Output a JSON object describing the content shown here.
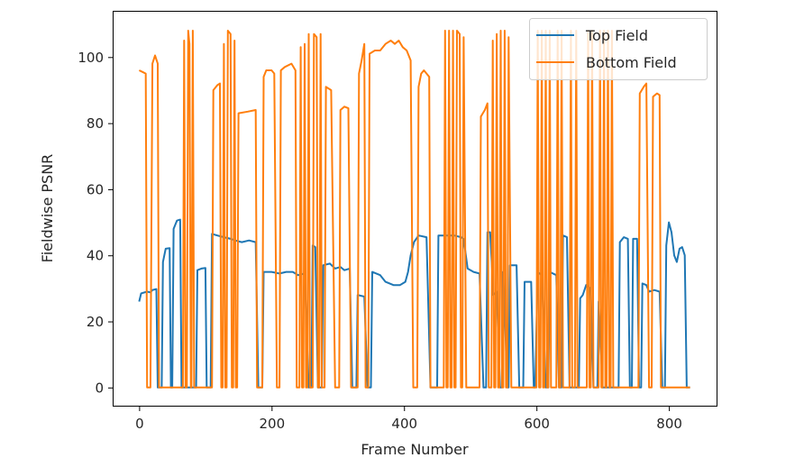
{
  "chart_data": {
    "type": "line",
    "xlabel": "Frame Number",
    "ylabel": "Fieldwise PSNR",
    "xlim": [
      -40,
      872
    ],
    "ylim": [
      -5.5,
      114
    ],
    "x_ticks": [
      0,
      200,
      400,
      600,
      800
    ],
    "y_ticks": [
      0,
      20,
      40,
      60,
      80,
      100
    ],
    "grid": false,
    "legend_position": "top-right",
    "series": [
      {
        "name": "Top Field",
        "color": "#1f77b4",
        "points": [
          [
            0,
            26
          ],
          [
            3,
            28.5
          ],
          [
            12,
            29
          ],
          [
            17,
            28.8
          ],
          [
            20,
            29.5
          ],
          [
            26,
            29.8
          ],
          [
            28,
            0
          ],
          [
            34,
            0
          ],
          [
            36,
            38
          ],
          [
            40,
            42
          ],
          [
            46,
            42.2
          ],
          [
            48,
            0
          ],
          [
            50,
            0
          ],
          [
            52,
            48
          ],
          [
            57,
            50.5
          ],
          [
            62,
            50.8
          ],
          [
            64,
            0
          ],
          [
            86,
            0
          ],
          [
            88,
            35.5
          ],
          [
            94,
            36
          ],
          [
            100,
            36.2
          ],
          [
            102,
            0
          ],
          [
            108,
            0
          ],
          [
            110,
            46.5
          ],
          [
            118,
            46
          ],
          [
            128,
            45.5
          ],
          [
            138,
            45
          ],
          [
            145,
            44.5
          ],
          [
            155,
            44
          ],
          [
            166,
            44.5
          ],
          [
            176,
            44
          ],
          [
            180,
            0
          ],
          [
            186,
            0
          ],
          [
            188,
            35
          ],
          [
            200,
            35
          ],
          [
            212,
            34.5
          ],
          [
            222,
            35
          ],
          [
            232,
            35
          ],
          [
            240,
            34
          ],
          [
            250,
            34.5
          ],
          [
            256,
            0
          ],
          [
            260,
            0
          ],
          [
            262,
            43
          ],
          [
            266,
            42.5
          ],
          [
            270,
            0
          ],
          [
            276,
            0
          ],
          [
            278,
            37
          ],
          [
            288,
            37.5
          ],
          [
            296,
            36
          ],
          [
            304,
            36.5
          ],
          [
            310,
            35.5
          ],
          [
            318,
            36
          ],
          [
            322,
            0
          ],
          [
            328,
            0
          ],
          [
            330,
            28
          ],
          [
            340,
            27.5
          ],
          [
            345,
            0
          ],
          [
            350,
            0
          ],
          [
            352,
            35
          ],
          [
            364,
            34
          ],
          [
            372,
            32
          ],
          [
            384,
            31
          ],
          [
            394,
            31
          ],
          [
            402,
            32
          ],
          [
            406,
            35
          ],
          [
            410,
            40
          ],
          [
            415,
            44
          ],
          [
            422,
            46
          ],
          [
            434,
            45.5
          ],
          [
            440,
            0
          ],
          [
            450,
            0
          ],
          [
            452,
            46
          ],
          [
            464,
            46
          ],
          [
            476,
            46
          ],
          [
            486,
            45.5
          ],
          [
            490,
            45
          ],
          [
            496,
            36
          ],
          [
            505,
            35
          ],
          [
            514,
            34.5
          ],
          [
            520,
            0
          ],
          [
            524,
            0
          ],
          [
            526,
            47
          ],
          [
            530,
            47
          ],
          [
            535,
            28
          ],
          [
            540,
            29
          ],
          [
            545,
            0
          ],
          [
            548,
            0
          ],
          [
            550,
            35
          ],
          [
            556,
            0
          ],
          [
            558,
            0
          ],
          [
            560,
            37
          ],
          [
            570,
            37
          ],
          [
            574,
            0
          ],
          [
            580,
            0
          ],
          [
            582,
            32
          ],
          [
            592,
            32
          ],
          [
            596,
            0
          ],
          [
            598,
            0
          ],
          [
            602,
            35
          ],
          [
            608,
            34
          ],
          [
            614,
            0
          ],
          [
            618,
            0
          ],
          [
            620,
            35
          ],
          [
            630,
            34
          ],
          [
            634,
            0
          ],
          [
            638,
            0
          ],
          [
            640,
            46
          ],
          [
            646,
            45.5
          ],
          [
            650,
            0
          ],
          [
            664,
            0
          ],
          [
            666,
            27
          ],
          [
            670,
            28
          ],
          [
            675,
            31
          ],
          [
            682,
            30
          ],
          [
            686,
            0
          ],
          [
            692,
            0
          ],
          [
            694,
            26
          ],
          [
            700,
            0
          ],
          [
            724,
            0
          ],
          [
            726,
            44
          ],
          [
            732,
            45.5
          ],
          [
            738,
            45
          ],
          [
            741,
            0
          ],
          [
            744,
            0
          ],
          [
            746,
            45
          ],
          [
            752,
            45
          ],
          [
            755,
            0
          ],
          [
            758,
            0
          ],
          [
            760,
            31.5
          ],
          [
            766,
            31
          ],
          [
            770,
            29
          ],
          [
            778,
            29.5
          ],
          [
            786,
            29
          ],
          [
            790,
            0
          ],
          [
            794,
            0
          ],
          [
            796,
            43
          ],
          [
            800,
            50
          ],
          [
            804,
            47
          ],
          [
            808,
            40
          ],
          [
            812,
            38
          ],
          [
            816,
            42
          ],
          [
            820,
            42.5
          ],
          [
            824,
            40
          ],
          [
            827,
            0
          ],
          [
            832,
            0
          ]
        ]
      },
      {
        "name": "Bottom Field",
        "color": "#ff7f0e",
        "points": [
          [
            0,
            96
          ],
          [
            5,
            95.5
          ],
          [
            10,
            95
          ],
          [
            12,
            0
          ],
          [
            17,
            0
          ],
          [
            20,
            98
          ],
          [
            24,
            100.5
          ],
          [
            28,
            98
          ],
          [
            30,
            0
          ],
          [
            66,
            0
          ],
          [
            68,
            105
          ],
          [
            70,
            0
          ],
          [
            72,
            0
          ],
          [
            74,
            108
          ],
          [
            76,
            104
          ],
          [
            78,
            0
          ],
          [
            79,
            0
          ],
          [
            81,
            108
          ],
          [
            83,
            0
          ],
          [
            110,
            0
          ],
          [
            112,
            90
          ],
          [
            118,
            91.5
          ],
          [
            122,
            92
          ],
          [
            124,
            0
          ],
          [
            126,
            0
          ],
          [
            128,
            104
          ],
          [
            130,
            0
          ],
          [
            132,
            0
          ],
          [
            134,
            108
          ],
          [
            138,
            107
          ],
          [
            140,
            0
          ],
          [
            142,
            0
          ],
          [
            144,
            105
          ],
          [
            146,
            0
          ],
          [
            148,
            0
          ],
          [
            150,
            83
          ],
          [
            164,
            83.5
          ],
          [
            176,
            84
          ],
          [
            178,
            0
          ],
          [
            186,
            0
          ],
          [
            188,
            94
          ],
          [
            192,
            96
          ],
          [
            200,
            96
          ],
          [
            204,
            95
          ],
          [
            208,
            0
          ],
          [
            212,
            0
          ],
          [
            214,
            96
          ],
          [
            220,
            97
          ],
          [
            230,
            98
          ],
          [
            236,
            96
          ],
          [
            238,
            0
          ],
          [
            242,
            0
          ],
          [
            244,
            103
          ],
          [
            246,
            0
          ],
          [
            248,
            0
          ],
          [
            250,
            104
          ],
          [
            252,
            0
          ],
          [
            254,
            0
          ],
          [
            256,
            107
          ],
          [
            258,
            0
          ],
          [
            262,
            0
          ],
          [
            264,
            107
          ],
          [
            268,
            106
          ],
          [
            270,
            0
          ],
          [
            272,
            0
          ],
          [
            274,
            107
          ],
          [
            276,
            0
          ],
          [
            280,
            0
          ],
          [
            282,
            91
          ],
          [
            290,
            90
          ],
          [
            296,
            0
          ],
          [
            302,
            0
          ],
          [
            304,
            84
          ],
          [
            310,
            85
          ],
          [
            316,
            84.5
          ],
          [
            320,
            0
          ],
          [
            330,
            0
          ],
          [
            332,
            95
          ],
          [
            336,
            99
          ],
          [
            340,
            104
          ],
          [
            342,
            0
          ],
          [
            346,
            0
          ],
          [
            348,
            101
          ],
          [
            356,
            102
          ],
          [
            364,
            102
          ],
          [
            372,
            104
          ],
          [
            380,
            105
          ],
          [
            386,
            104
          ],
          [
            392,
            105
          ],
          [
            398,
            103
          ],
          [
            404,
            102
          ],
          [
            410,
            99
          ],
          [
            414,
            0
          ],
          [
            420,
            0
          ],
          [
            422,
            91
          ],
          [
            426,
            95
          ],
          [
            430,
            96
          ],
          [
            438,
            94
          ],
          [
            440,
            0
          ],
          [
            460,
            0
          ],
          [
            462,
            108
          ],
          [
            464,
            0
          ],
          [
            466,
            0
          ],
          [
            468,
            108
          ],
          [
            470,
            0
          ],
          [
            472,
            0
          ],
          [
            474,
            108
          ],
          [
            476,
            0
          ],
          [
            478,
            0
          ],
          [
            480,
            108
          ],
          [
            484,
            107
          ],
          [
            486,
            0
          ],
          [
            488,
            0
          ],
          [
            490,
            106
          ],
          [
            494,
            0
          ],
          [
            514,
            0
          ],
          [
            516,
            82
          ],
          [
            522,
            84
          ],
          [
            526,
            86
          ],
          [
            528,
            0
          ],
          [
            532,
            0
          ],
          [
            534,
            105
          ],
          [
            536,
            0
          ],
          [
            538,
            0
          ],
          [
            540,
            107
          ],
          [
            542,
            0
          ],
          [
            544,
            0
          ],
          [
            546,
            108
          ],
          [
            548,
            0
          ],
          [
            550,
            0
          ],
          [
            552,
            108
          ],
          [
            554,
            0
          ],
          [
            556,
            0
          ],
          [
            558,
            106
          ],
          [
            562,
            0
          ],
          [
            600,
            0
          ],
          [
            602,
            108
          ],
          [
            604,
            0
          ],
          [
            606,
            0
          ],
          [
            608,
            108
          ],
          [
            610,
            0
          ],
          [
            612,
            0
          ],
          [
            614,
            108
          ],
          [
            616,
            0
          ],
          [
            618,
            0
          ],
          [
            620,
            108
          ],
          [
            622,
            0
          ],
          [
            630,
            0
          ],
          [
            632,
            108
          ],
          [
            634,
            0
          ],
          [
            636,
            0
          ],
          [
            638,
            108
          ],
          [
            640,
            0
          ],
          [
            650,
            0
          ],
          [
            652,
            108
          ],
          [
            654,
            0
          ],
          [
            658,
            0
          ],
          [
            660,
            108
          ],
          [
            662,
            0
          ],
          [
            676,
            0
          ],
          [
            678,
            108
          ],
          [
            680,
            0
          ],
          [
            682,
            0
          ],
          [
            684,
            108
          ],
          [
            686,
            0
          ],
          [
            694,
            0
          ],
          [
            696,
            108
          ],
          [
            698,
            0
          ],
          [
            700,
            0
          ],
          [
            702,
            108
          ],
          [
            704,
            0
          ],
          [
            706,
            0
          ],
          [
            708,
            108
          ],
          [
            710,
            0
          ],
          [
            712,
            0
          ],
          [
            714,
            108
          ],
          [
            716,
            0
          ],
          [
            754,
            0
          ],
          [
            756,
            89
          ],
          [
            762,
            91
          ],
          [
            766,
            92
          ],
          [
            770,
            0
          ],
          [
            774,
            0
          ],
          [
            776,
            88
          ],
          [
            782,
            89
          ],
          [
            786,
            88.5
          ],
          [
            788,
            0
          ],
          [
            832,
            0
          ]
        ]
      }
    ]
  }
}
